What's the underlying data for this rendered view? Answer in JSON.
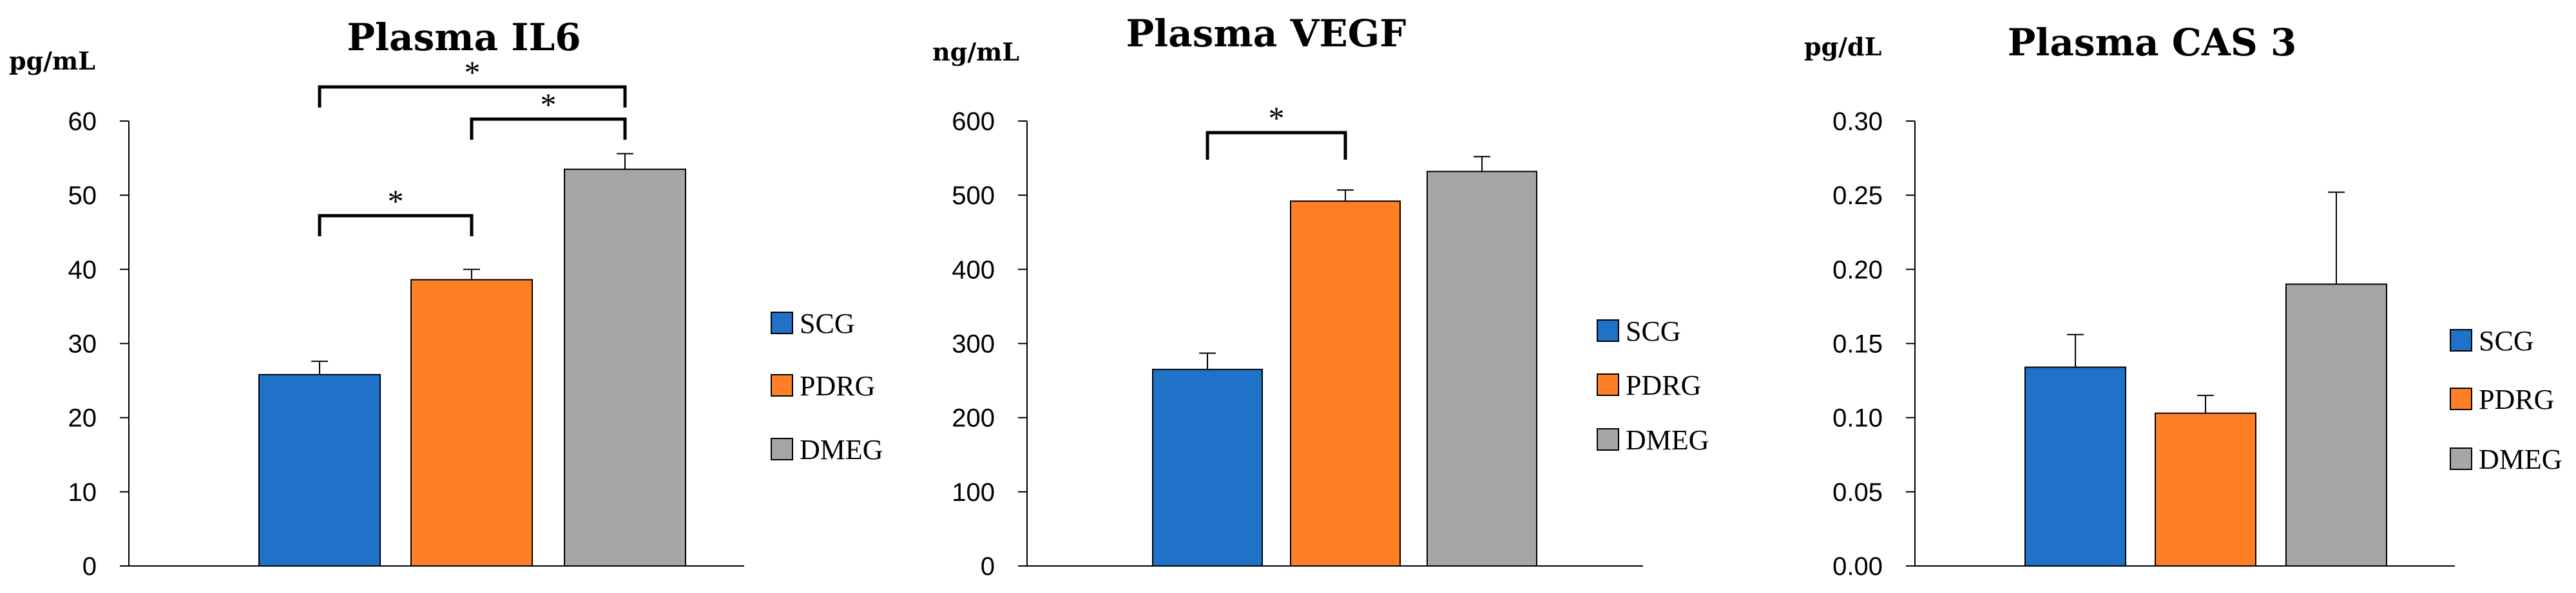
{
  "chart_data": [
    {
      "type": "bar",
      "title": "Plasma IL6",
      "ylabel": "pg/mL",
      "xlabel": "",
      "categories": [
        "SCG",
        "PDRG",
        "DMEG"
      ],
      "values": [
        25.8,
        38.6,
        53.5
      ],
      "errors": [
        1.8,
        1.4,
        2.1
      ],
      "colors": [
        "#1f72c8",
        "#ff7f27",
        "#a6a6a6"
      ],
      "ylim": [
        0,
        60
      ],
      "yticks": [
        "0",
        "10",
        "20",
        "30",
        "40",
        "50",
        "60"
      ],
      "legend": [
        "SCG",
        "PDRG",
        "DMEG"
      ],
      "legend_position": "right",
      "significance": [
        {
          "from": 0,
          "to": 1,
          "label": "*"
        },
        {
          "from": 1,
          "to": 2,
          "label": "*"
        },
        {
          "from": 0,
          "to": 2,
          "label": "*"
        }
      ]
    },
    {
      "type": "bar",
      "title": "Plasma VEGF",
      "ylabel": "ng/mL",
      "xlabel": "",
      "categories": [
        "SCG",
        "PDRG",
        "DMEG"
      ],
      "values": [
        265,
        492,
        532
      ],
      "errors": [
        22,
        15,
        20
      ],
      "colors": [
        "#1f72c8",
        "#ff7f27",
        "#a6a6a6"
      ],
      "ylim": [
        0,
        600
      ],
      "yticks": [
        "0",
        "100",
        "200",
        "300",
        "400",
        "500",
        "600"
      ],
      "legend": [
        "SCG",
        "PDRG",
        "DMEG"
      ],
      "legend_position": "right",
      "significance": [
        {
          "from": 0,
          "to": 1,
          "label": "*"
        }
      ]
    },
    {
      "type": "bar",
      "title": "Plasma CAS 3",
      "ylabel": "pg/dL",
      "xlabel": "",
      "categories": [
        "SCG",
        "PDRG",
        "DMEG"
      ],
      "values": [
        0.134,
        0.103,
        0.19
      ],
      "errors": [
        0.022,
        0.012,
        0.062
      ],
      "colors": [
        "#1f72c8",
        "#ff7f27",
        "#a6a6a6"
      ],
      "ylim": [
        0,
        0.3
      ],
      "yticks": [
        "0.00",
        "0.05",
        "0.10",
        "0.15",
        "0.20",
        "0.25",
        "0.30"
      ],
      "legend": [
        "SCG",
        "PDRG",
        "DMEG"
      ],
      "legend_position": "right",
      "significance": []
    }
  ]
}
